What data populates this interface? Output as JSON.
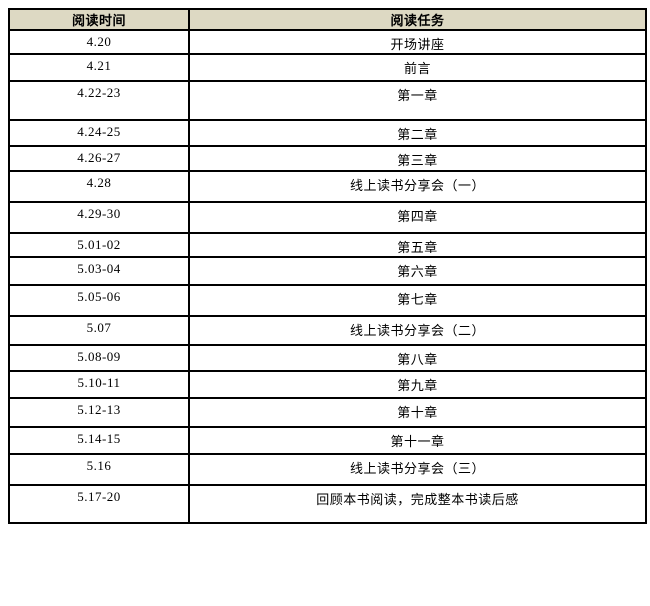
{
  "table": {
    "columns": {
      "time": "阅读时间",
      "task": "阅读任务"
    },
    "rows": [
      {
        "time": "4.20",
        "task": "开场讲座"
      },
      {
        "time": "4.21",
        "task": "前言"
      },
      {
        "time": "4.22-23",
        "task": "第一章"
      },
      {
        "time": "4.24-25",
        "task": "第二章"
      },
      {
        "time": "4.26-27",
        "task": "第三章"
      },
      {
        "time": "4.28",
        "task": "线上读书分享会（一）"
      },
      {
        "time": "4.29-30",
        "task": "第四章"
      },
      {
        "time": "5.01-02",
        "task": "第五章"
      },
      {
        "time": "5.03-04",
        "task": "第六章"
      },
      {
        "time": "5.05-06",
        "task": "第七章"
      },
      {
        "time": "5.07",
        "task": "线上读书分享会（二）"
      },
      {
        "time": "5.08-09",
        "task": "第八章"
      },
      {
        "time": "5.10-11",
        "task": "第九章"
      },
      {
        "time": "5.12-13",
        "task": "第十章"
      },
      {
        "time": "5.14-15",
        "task": "第十一章"
      },
      {
        "time": "5.16",
        "task": "线上读书分享会（三）"
      },
      {
        "time": "5.17-20",
        "task": "回顾本书阅读，完成整本书读后感"
      }
    ],
    "colors": {
      "header_bg": "#DDD9C3",
      "border": "#000000",
      "text": "#000000"
    }
  }
}
